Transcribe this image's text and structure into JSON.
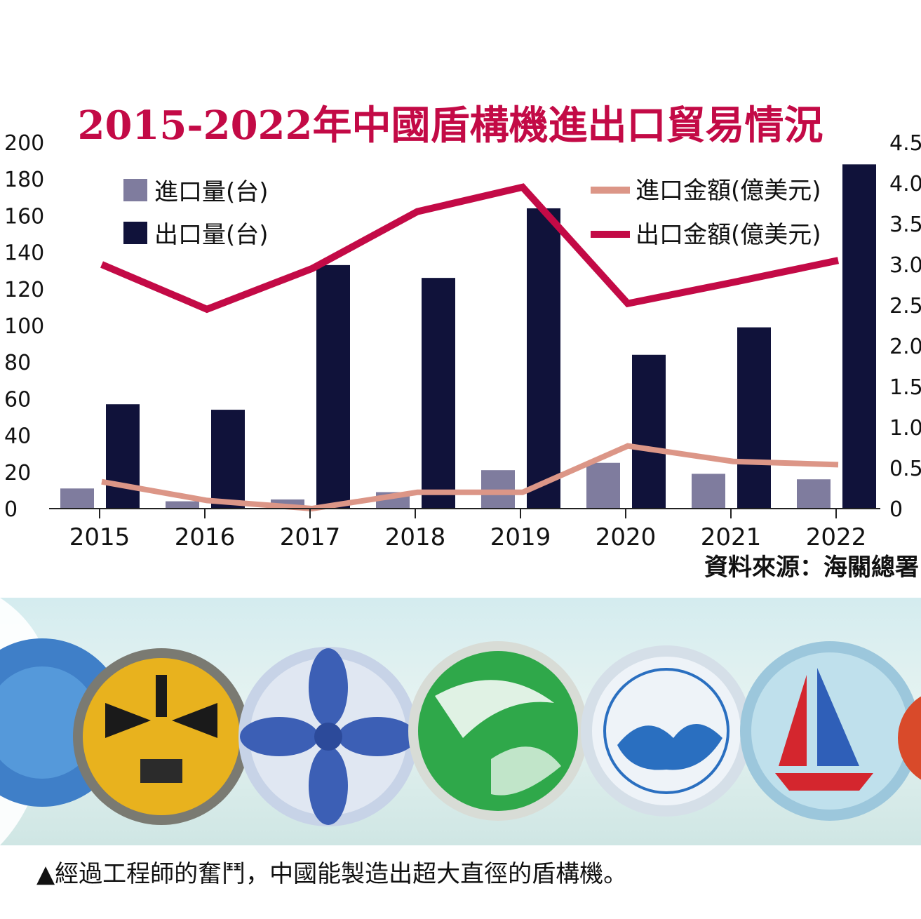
{
  "chart_data": {
    "type": "bar",
    "title": "2015-2022年中國盾構機進出口貿易情況",
    "categories": [
      "2015",
      "2016",
      "2017",
      "2018",
      "2019",
      "2020",
      "2021",
      "2022"
    ],
    "series": [
      {
        "name": "進口量(台)",
        "kind": "bar",
        "axis": "left",
        "color": "#7f7c9e",
        "values": [
          11,
          4,
          5,
          9,
          21,
          25,
          19,
          16
        ]
      },
      {
        "name": "出口量(台)",
        "kind": "bar",
        "axis": "left",
        "color": "#10123a",
        "values": [
          57,
          54,
          133,
          126,
          164,
          84,
          99,
          188
        ]
      },
      {
        "name": "進口金額(億美元)",
        "kind": "line",
        "axis": "right",
        "color": "#dc9687",
        "values": [
          0.33,
          0.1,
          0.0,
          0.2,
          0.2,
          0.77,
          0.58,
          0.54
        ]
      },
      {
        "name": "出口金額(億美元)",
        "kind": "line",
        "axis": "right",
        "color": "#c30a46",
        "values": [
          3.0,
          2.45,
          2.95,
          3.65,
          3.95,
          2.52,
          2.78,
          3.05
        ]
      }
    ],
    "y_left": {
      "min": 0,
      "max": 200,
      "ticks": [
        "0",
        "20",
        "40",
        "60",
        "80",
        "100",
        "120",
        "140",
        "160",
        "180",
        "200"
      ]
    },
    "y_right": {
      "min": 0,
      "max": 4.5,
      "ticks": [
        "0",
        "0.5",
        "1.0",
        "1.5",
        "2.0",
        "2.5",
        "3.0",
        "3.5",
        "4.0",
        "4.5"
      ]
    },
    "grid": false,
    "legend_placement": "top",
    "source": "資料來源：海關總署"
  },
  "photo": {
    "caption": "▲經過工程師的奮鬥，中國能製造出超大直徑的盾構機。"
  }
}
